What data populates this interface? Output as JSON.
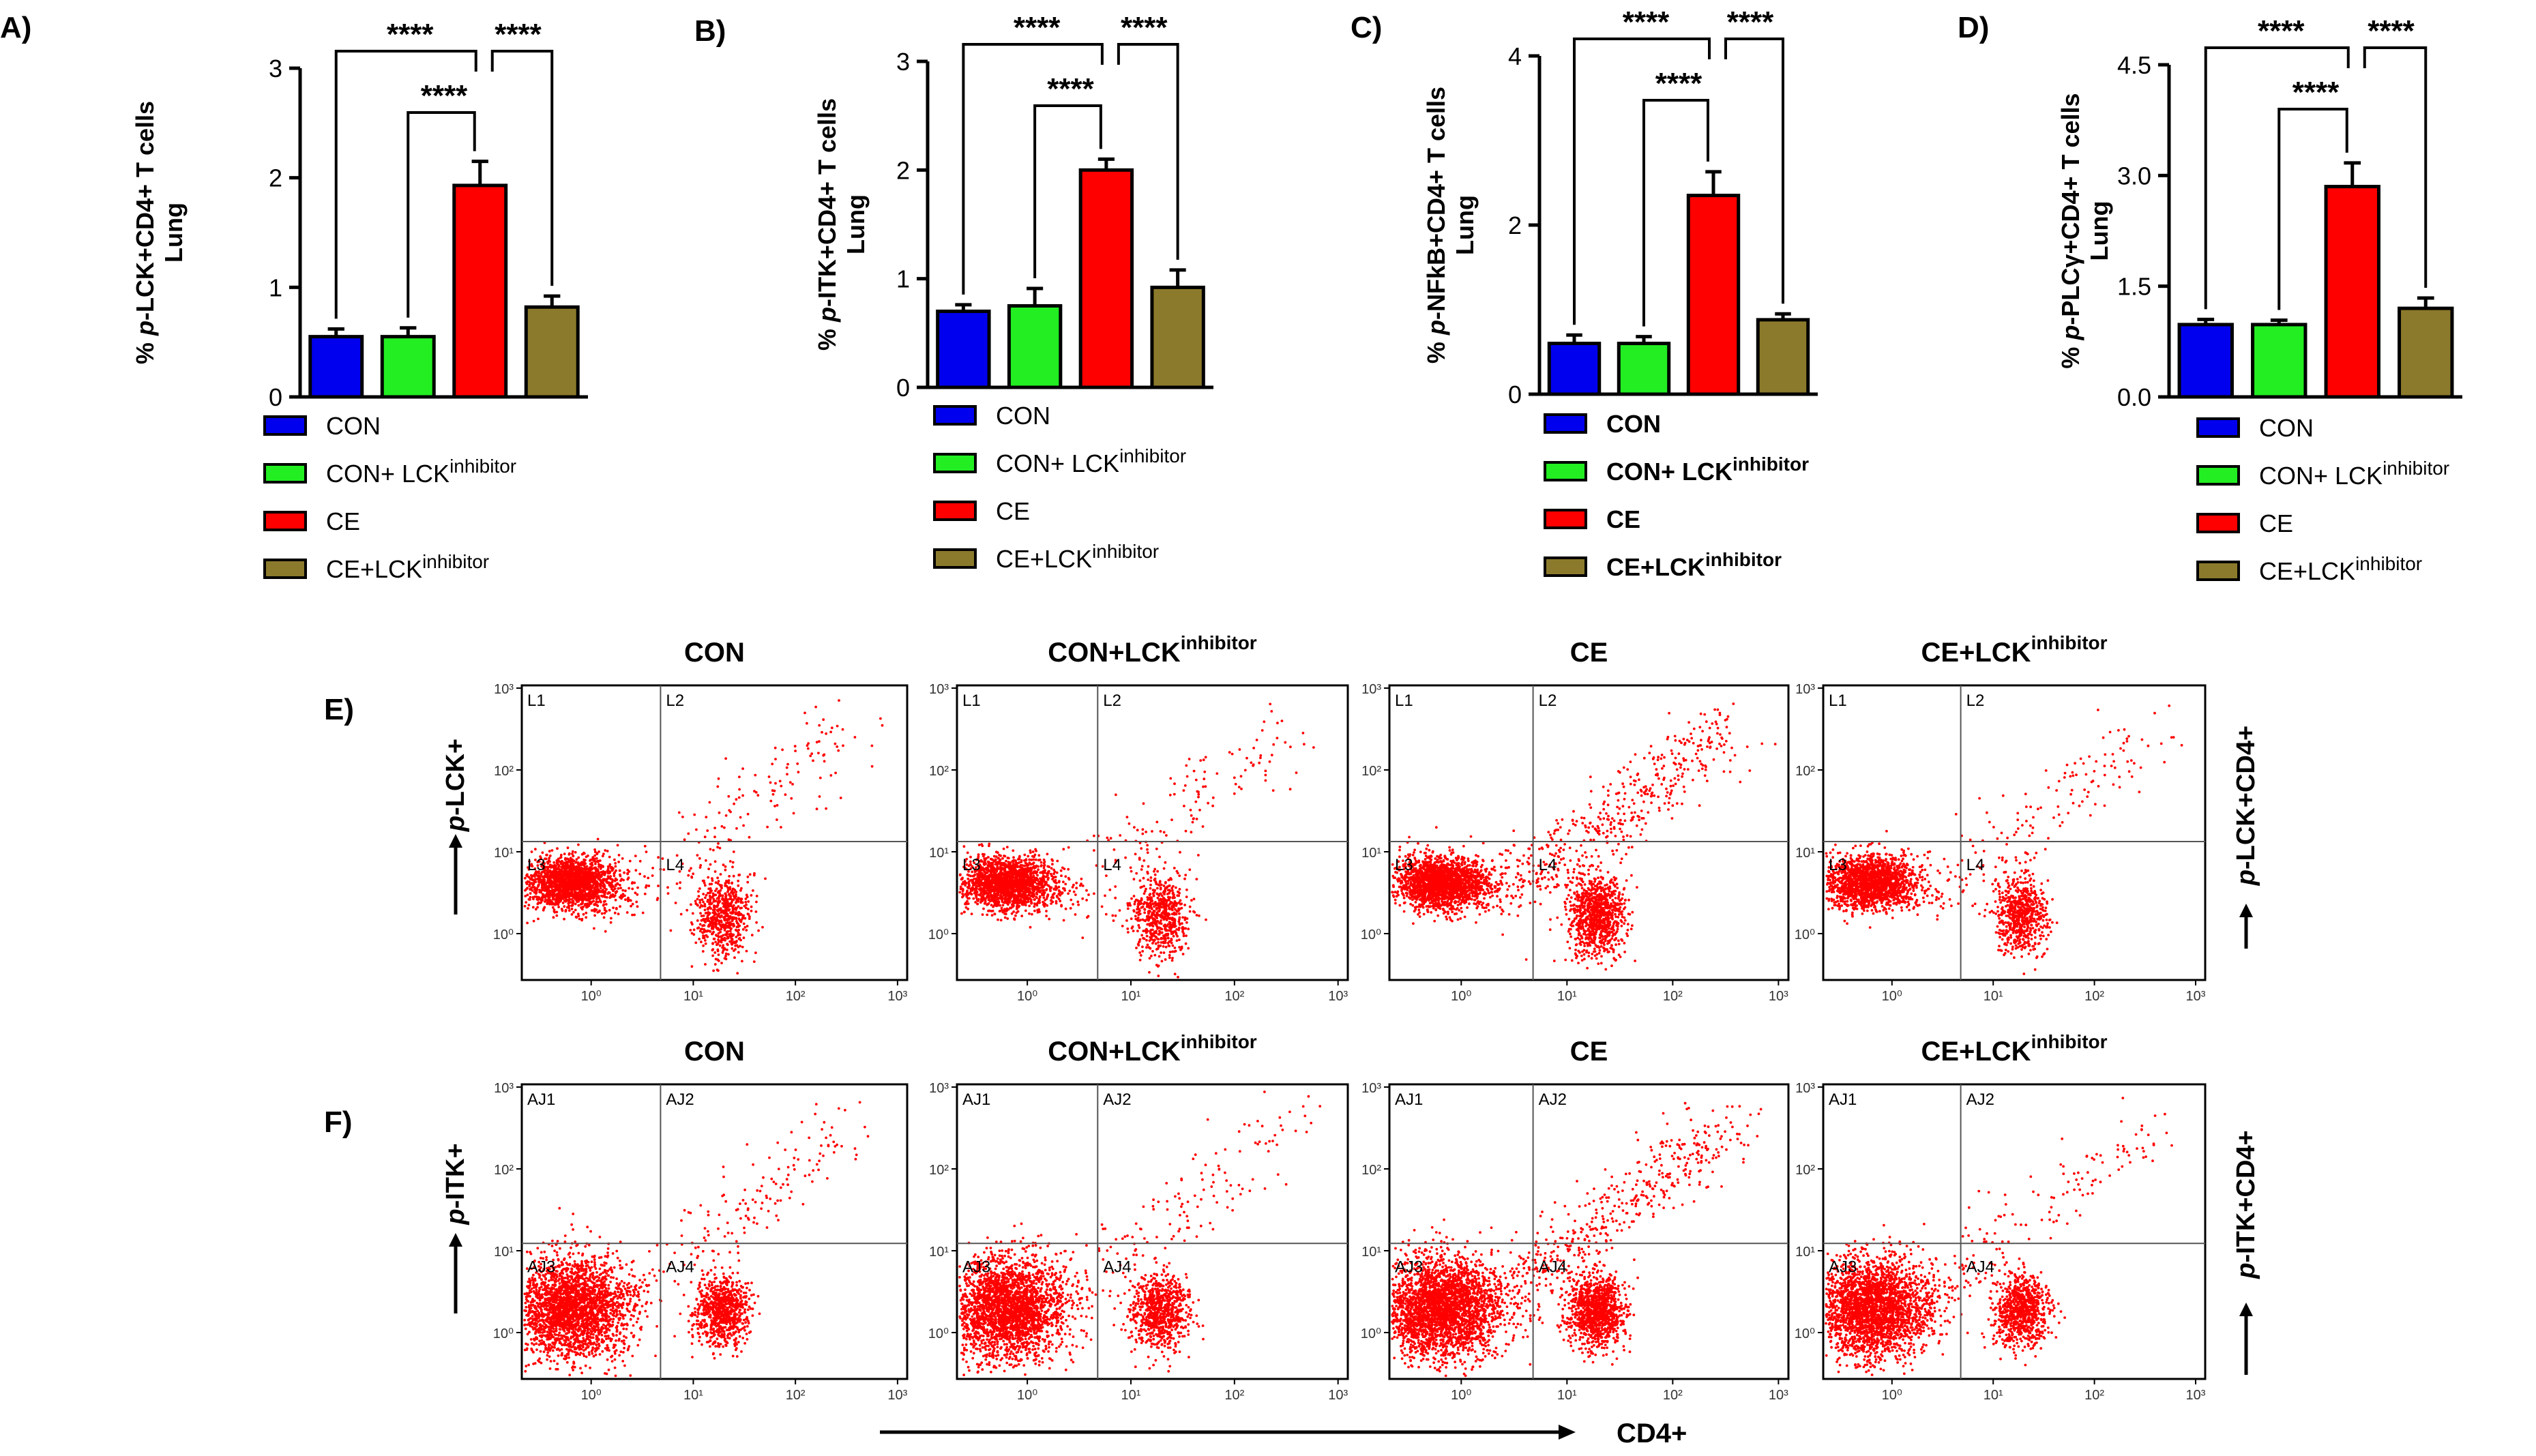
{
  "colors": {
    "con": "#0000EE",
    "con_inh": "#22EE22",
    "ce": "#FF0000",
    "ce_inh": "#8C7A2C",
    "dot": "#FF0000"
  },
  "legend_labels": [
    "CON",
    "CON+ LCK",
    "CE",
    "CE+LCK"
  ],
  "legend_sup": "inhibitor",
  "chart_data": [
    {
      "type": "bar",
      "panel": "A)",
      "ylabel_pre": "% ",
      "ylabel_it": "p",
      "ylabel_post": "-LCK+CD4+ T cells",
      "ylabel2": "Lung",
      "ylim": [
        0,
        3
      ],
      "yticks": [
        "0",
        "1",
        "2",
        "3"
      ],
      "ytick_vals": [
        0,
        1,
        2,
        3
      ],
      "categories": [
        "CON",
        "CON+ LCK inhibitor",
        "CE",
        "CE+LCK inhibitor"
      ],
      "values": [
        0.55,
        0.55,
        1.93,
        0.82
      ],
      "errors": [
        0.07,
        0.08,
        0.22,
        0.1
      ],
      "sig": "****"
    },
    {
      "type": "bar",
      "panel": "B)",
      "ylabel_pre": "% ",
      "ylabel_it": "p",
      "ylabel_post": "-ITK+CD4+ T cells",
      "ylabel2": "Lung",
      "ylim": [
        0,
        3
      ],
      "yticks": [
        "0",
        "1",
        "2",
        "3"
      ],
      "ytick_vals": [
        0,
        1,
        2,
        3
      ],
      "categories": [
        "CON",
        "CON+ LCK inhibitor",
        "CE",
        "CE+LCK inhibitor"
      ],
      "values": [
        0.7,
        0.75,
        2.0,
        0.92
      ],
      "errors": [
        0.06,
        0.16,
        0.1,
        0.16
      ],
      "sig": "****"
    },
    {
      "type": "bar",
      "panel": "C)",
      "ylabel_pre": "% ",
      "ylabel_it": "p",
      "ylabel_post": "-NFkB+CD4+ T cells",
      "ylabel2": "Lung",
      "ylim": [
        0,
        4
      ],
      "yticks": [
        "0",
        "2",
        "4"
      ],
      "ytick_vals": [
        0,
        2,
        4
      ],
      "categories": [
        "CON",
        "CON+ LCK inhibitor",
        "CE",
        "CE+LCK inhibitor"
      ],
      "values": [
        0.6,
        0.6,
        2.35,
        0.88
      ],
      "errors": [
        0.1,
        0.08,
        0.28,
        0.07
      ],
      "sig": "****"
    },
    {
      "type": "bar",
      "panel": "D)",
      "ylabel_pre": "% ",
      "ylabel_it": "p",
      "ylabel_post": "-PLCγ+CD4+ T cells",
      "ylabel2": "Lung",
      "ylim": [
        0,
        4.5
      ],
      "yticks": [
        "0.0",
        "1.5",
        "3.0",
        "4.5"
      ],
      "ytick_vals": [
        0,
        1.5,
        3.0,
        4.5
      ],
      "categories": [
        "CON",
        "CON+ LCK inhibitor",
        "CE",
        "CE+LCK inhibitor"
      ],
      "values": [
        0.98,
        0.98,
        2.85,
        1.2
      ],
      "errors": [
        0.07,
        0.06,
        0.32,
        0.14
      ],
      "sig": "****"
    }
  ],
  "flow": {
    "row_e": {
      "label": "E)",
      "ylabel_it": "p",
      "ylabel_post": "-LCK+",
      "right_it": "p",
      "right_post": "-LCK+CD4+",
      "titles": [
        "CON",
        "CON+LCK",
        "CE",
        "CE+LCK"
      ],
      "title_sup": [
        "",
        "inhibitor",
        "",
        "inhibitor"
      ],
      "quadrants": [
        "L1",
        "L2",
        "L3",
        "L4"
      ]
    },
    "row_f": {
      "label": "F)",
      "ylabel_it": "p",
      "ylabel_post": "-ITK+",
      "right_it": "p",
      "right_post": "-ITK+CD4+",
      "titles": [
        "CON",
        "CON+LCK",
        "CE",
        "CE+LCK"
      ],
      "title_sup": [
        "",
        "inhibitor",
        "",
        "inhibitor"
      ],
      "quadrants": [
        "AJ1",
        "AJ2",
        "AJ3",
        "AJ4"
      ]
    },
    "yticks": [
      "10³",
      "10²",
      "10¹",
      "10⁰"
    ],
    "xticks": [
      "10⁰",
      "10¹",
      "10²",
      "10³"
    ],
    "x_axis_label": "CD4+"
  }
}
